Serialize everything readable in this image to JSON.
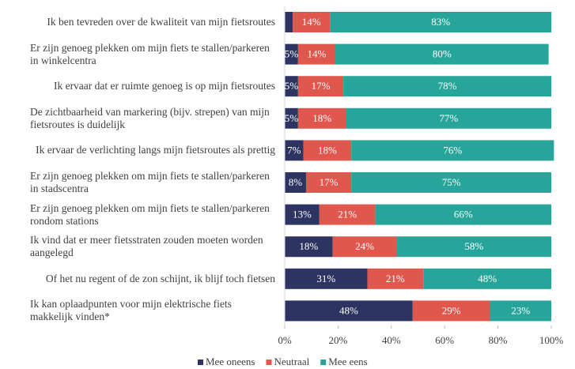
{
  "chart_data": {
    "type": "stacked-bar-horizontal",
    "categories": [
      "Ik ben tevreden over de kwaliteit van mijn fietsroutes",
      "Er zijn genoeg plekken om mijn fiets te stallen/parkeren in winkelcentra",
      "Ik ervaar dat er ruimte genoeg is op mijn fietsroutes",
      "De zichtbaarheid van markering (bijv. strepen) van mijn fietsroutes is duidelijk",
      "Ik ervaar de verlichting langs mijn fietsroutes als prettig",
      "Er zijn genoeg plekken om mijn fiets te stallen/parkeren in stadscentra",
      "Er zijn genoeg plekken om mijn fiets te stallen/parkeren rondom stations",
      "Ik vind dat er meer fietsstraten zouden moeten worden aangelegd",
      "Of het nu regent of de zon schijnt, ik blijf toch fietsen",
      "Ik kan oplaadpunten voor mijn elektrische fiets makkelijk vinden*"
    ],
    "series": [
      {
        "name": "Mee oneens",
        "color": "#2e3461",
        "values": [
          3,
          5,
          5,
          5,
          7,
          8,
          13,
          18,
          31,
          48
        ],
        "value_labels": [
          null,
          "5%",
          "5%",
          "5%",
          "7%",
          "8%",
          "13%",
          "18%",
          "31%",
          "48%"
        ]
      },
      {
        "name": "Neutraal",
        "color": "#e0574e",
        "values": [
          14,
          14,
          17,
          18,
          18,
          17,
          21,
          24,
          21,
          29
        ],
        "value_labels": [
          "14%",
          "14%",
          "17%",
          "18%",
          "18%",
          "17%",
          "21%",
          "24%",
          "21%",
          "29%"
        ]
      },
      {
        "name": "Mee eens",
        "color": "#27a59a",
        "values": [
          83,
          80,
          78,
          77,
          76,
          75,
          66,
          58,
          48,
          23
        ],
        "value_labels": [
          "83%",
          "80%",
          "78%",
          "77%",
          "76%",
          "75%",
          "66%",
          "58%",
          "48%",
          "23%"
        ]
      }
    ],
    "xlim": [
      0,
      100
    ],
    "xticks": [
      {
        "value": 0,
        "label": "0%"
      },
      {
        "value": 20,
        "label": "20%"
      },
      {
        "value": 40,
        "label": "40%"
      },
      {
        "value": 60,
        "label": "60%"
      },
      {
        "value": 80,
        "label": "80%"
      },
      {
        "value": 100,
        "label": "100%"
      }
    ],
    "legend": "bottom"
  }
}
